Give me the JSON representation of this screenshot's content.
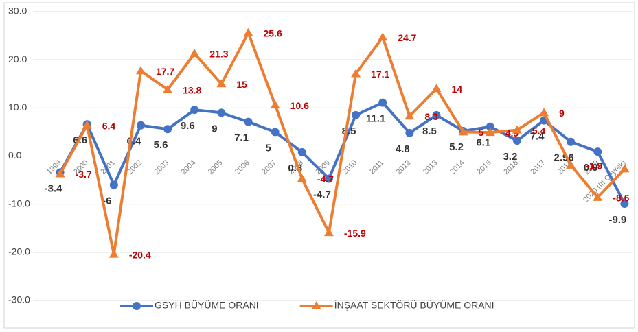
{
  "chart_data": {
    "type": "line",
    "categories": [
      "1999",
      "2000",
      "2001",
      "2002",
      "2003",
      "2004",
      "2005",
      "2006",
      "2007",
      "2008",
      "2009",
      "2010",
      "2011",
      "2012",
      "2013",
      "2014",
      "2015",
      "2016",
      "2017",
      "2018",
      "2019",
      "2020 (III.Çeyrek)"
    ],
    "series": [
      {
        "name": "GSYH BÜYÜME ORANI",
        "color": "#4472c4",
        "values": [
          -3.4,
          6.6,
          -6,
          6.4,
          5.6,
          9.6,
          9,
          7.1,
          5,
          0.8,
          -4.7,
          8.5,
          11.1,
          4.8,
          8.5,
          5.2,
          6.1,
          3.2,
          7.4,
          2.96,
          0.9,
          -9.9
        ]
      },
      {
        "name": "İNŞAAT SEKTÖRÜ BÜYÜME ORANI",
        "color": "#ed7d31",
        "values": [
          -3.7,
          6.4,
          -20.4,
          17.7,
          13.8,
          21.3,
          15,
          25.6,
          10.6,
          -4.7,
          -15.9,
          17.1,
          24.7,
          8.3,
          14,
          5,
          4.9,
          5.4,
          9,
          -1.9,
          -8.6,
          -2.69
        ]
      }
    ],
    "ylim": [
      -30,
      30
    ],
    "yticks": [
      {
        "value": -30,
        "label": "-30.0"
      },
      {
        "value": -20,
        "label": "-20.0"
      },
      {
        "value": -10,
        "label": "-10.0"
      },
      {
        "value": 0,
        "label": "0.0"
      },
      {
        "value": 10,
        "label": "10.0"
      },
      {
        "value": 20,
        "label": "20.0"
      },
      {
        "value": 30,
        "label": "30.0"
      }
    ],
    "grid": true,
    "legend": "bottom"
  }
}
